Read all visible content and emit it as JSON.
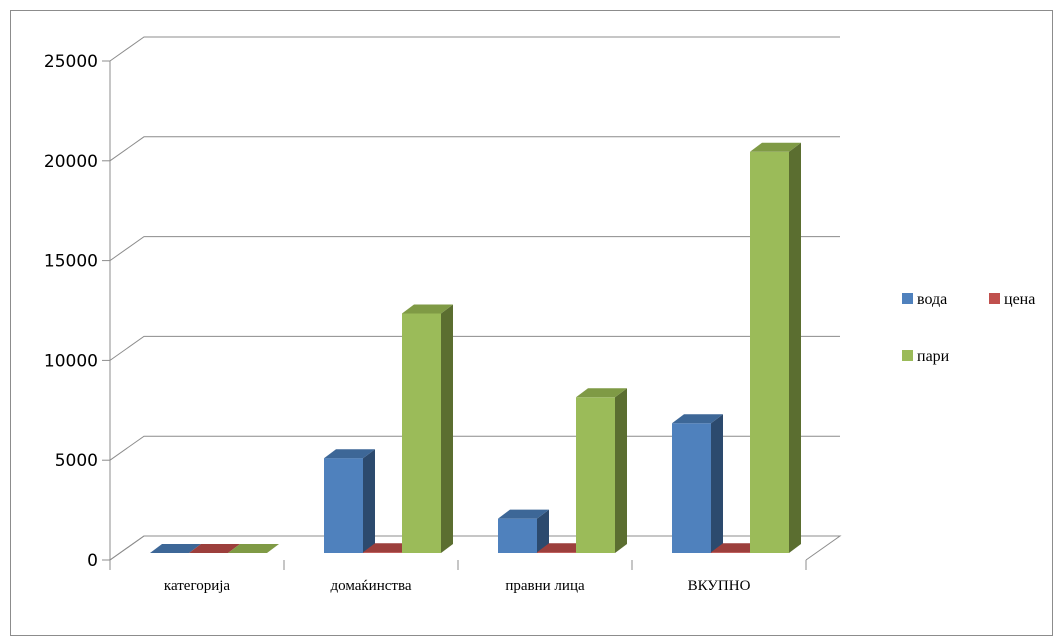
{
  "chart_data": {
    "type": "bar",
    "categories": [
      "категорија",
      "домаќинства",
      "правни лица",
      "ВКУПНО"
    ],
    "series": [
      {
        "name": "вода",
        "values": [
          0,
          4750,
          1720,
          6500
        ],
        "color": "#4F81BD",
        "top": "#3D6797",
        "side": "#2C4A6E"
      },
      {
        "name": "цена",
        "values": [
          0,
          38,
          38,
          38
        ],
        "color": "#C0504D",
        "top": "#9C3F3C",
        "side": "#7E302E"
      },
      {
        "name": "пари",
        "values": [
          0,
          12000,
          7800,
          20100
        ],
        "color": "#9BBB59",
        "top": "#7F9A45",
        "side": "#5B6E30"
      }
    ],
    "y_ticks": [
      "0",
      "5000",
      "10000",
      "15000",
      "20000",
      "25000"
    ],
    "ylim": [
      0,
      25000
    ],
    "grid": true,
    "legend": "right",
    "title": "",
    "xlabel": "",
    "ylabel": ""
  }
}
